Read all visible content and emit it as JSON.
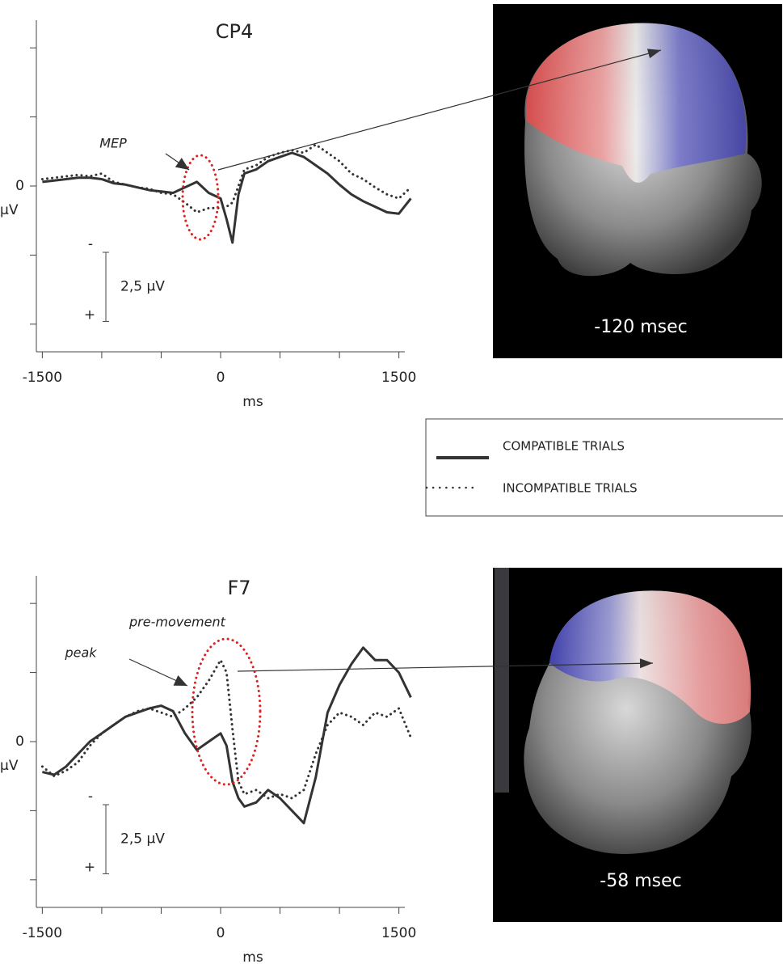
{
  "chart_data": [
    {
      "type": "line",
      "title": "CP4",
      "xlabel": "ms",
      "ylabel": "µV",
      "xlim": [
        -1550,
        1550
      ],
      "xticks": [
        -1500,
        0,
        1500
      ],
      "x_minor_ticks": [
        -1000,
        -500,
        500,
        1000
      ],
      "ylim": [
        -6,
        6
      ],
      "y_inverted": true,
      "yticks": [
        0
      ],
      "y_minor_ticks": [
        -5,
        -2.5,
        2.5,
        5
      ],
      "x": [
        -1500,
        -1400,
        -1300,
        -1200,
        -1100,
        -1000,
        -900,
        -800,
        -700,
        -600,
        -500,
        -400,
        -300,
        -200,
        -100,
        0,
        50,
        100,
        150,
        200,
        300,
        400,
        500,
        600,
        700,
        800,
        900,
        1000,
        1100,
        1200,
        1300,
        1400,
        1500,
        1600
      ],
      "series": [
        {
          "name": "COMPATIBLE TRIALS",
          "style": "solid",
          "color": "#333333",
          "values": [
            -0.15,
            -0.2,
            -0.25,
            -0.3,
            -0.3,
            -0.25,
            -0.1,
            -0.05,
            0.05,
            0.15,
            0.2,
            0.25,
            0.05,
            -0.15,
            0.25,
            0.45,
            1.2,
            2.05,
            0.3,
            -0.45,
            -0.6,
            -0.9,
            -1.05,
            -1.2,
            -1.05,
            -0.75,
            -0.45,
            -0.05,
            0.3,
            0.55,
            0.75,
            0.95,
            1.0,
            0.45
          ]
        },
        {
          "name": "INCOMPATIBLE TRIALS",
          "style": "dotted",
          "color": "#333333",
          "values": [
            -0.25,
            -0.3,
            -0.35,
            -0.4,
            -0.35,
            -0.45,
            -0.15,
            -0.05,
            0.05,
            0.1,
            0.25,
            0.3,
            0.6,
            0.95,
            0.8,
            0.8,
            0.75,
            0.6,
            0,
            -0.6,
            -0.75,
            -1.05,
            -1.2,
            -1.3,
            -1.2,
            -1.5,
            -1.2,
            -0.9,
            -0.45,
            -0.25,
            0.05,
            0.3,
            0.45,
            0.05
          ]
        }
      ],
      "annotation": [
        "MEP"
      ],
      "scale_bar": {
        "value": 2.5,
        "label": "2,5 µV",
        "top": "-",
        "bottom": "+"
      },
      "image_label": "-120 msec"
    },
    {
      "type": "line",
      "title": "F7",
      "xlabel": "ms",
      "ylabel": "µV",
      "xlim": [
        -1550,
        1550
      ],
      "xticks": [
        -1500,
        0,
        1500
      ],
      "x_minor_ticks": [
        -1000,
        -500,
        500,
        1000
      ],
      "ylim": [
        -6,
        6
      ],
      "y_inverted": true,
      "yticks": [
        0
      ],
      "y_minor_ticks": [
        -5,
        -2.5,
        2.5,
        5
      ],
      "x": [
        -1500,
        -1400,
        -1300,
        -1200,
        -1100,
        -1000,
        -900,
        -800,
        -700,
        -600,
        -500,
        -400,
        -300,
        -200,
        -100,
        0,
        50,
        100,
        150,
        200,
        300,
        400,
        500,
        600,
        700,
        800,
        900,
        1000,
        1100,
        1200,
        1300,
        1400,
        1500,
        1600
      ],
      "series": [
        {
          "style": "solid",
          "color": "#333333",
          "values": [
            1.1,
            1.2,
            0.9,
            0.45,
            0,
            -0.3,
            -0.6,
            -0.9,
            -1.05,
            -1.2,
            -1.3,
            -1.1,
            -0.3,
            0.3,
            0,
            -0.3,
            0.15,
            1.45,
            2.05,
            2.35,
            2.2,
            1.75,
            2.05,
            2.5,
            2.95,
            1.3,
            -1.05,
            -2.05,
            -2.8,
            -3.4,
            -2.95,
            -2.95,
            -2.5,
            -1.6
          ]
        },
        {
          "style": "dotted",
          "color": "#333333",
          "values": [
            0.9,
            1.25,
            1.05,
            0.75,
            0.15,
            -0.3,
            -0.6,
            -0.9,
            -1.1,
            -1.2,
            -1.05,
            -0.9,
            -1.2,
            -1.6,
            -2.2,
            -2.95,
            -2.5,
            -0.45,
            1.45,
            1.9,
            1.75,
            2.05,
            1.9,
            2.05,
            1.75,
            0.45,
            -0.6,
            -1.05,
            -0.9,
            -0.6,
            -1.05,
            -0.9,
            -1.2,
            -0.15
          ]
        }
      ],
      "annotation": [
        "pre-movement",
        "peak"
      ],
      "scale_bar": {
        "value": 2.5,
        "label": "2,5 µV",
        "top": "-",
        "bottom": "+"
      },
      "image_label": "-58 msec"
    }
  ]
}
